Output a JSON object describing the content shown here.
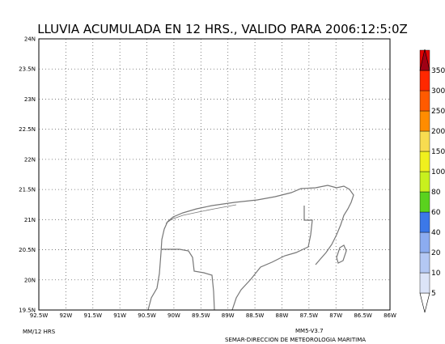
{
  "title": "LLUVIA ACUMULADA EN 12 HRS., VALIDO PARA 2006:12:5:0Z",
  "xlim": [
    -92.5,
    -86
  ],
  "ylim": [
    19.5,
    24
  ],
  "xticks": [
    {
      "value": -92.5,
      "label": "92.5W"
    },
    {
      "value": -92,
      "label": "92W"
    },
    {
      "value": -91.5,
      "label": "91.5W"
    },
    {
      "value": -91,
      "label": "91W"
    },
    {
      "value": -90.5,
      "label": "90.5W"
    },
    {
      "value": -90,
      "label": "90W"
    },
    {
      "value": -89.5,
      "label": "89.5W"
    },
    {
      "value": -89,
      "label": "89W"
    },
    {
      "value": -88.5,
      "label": "88.5W"
    },
    {
      "value": -88,
      "label": "88W"
    },
    {
      "value": -87.5,
      "label": "87.5W"
    },
    {
      "value": -87,
      "label": "87W"
    },
    {
      "value": -86.5,
      "label": "86.5W"
    },
    {
      "value": -86,
      "label": "86W"
    }
  ],
  "yticks": [
    {
      "value": 19.5,
      "label": "19.5N"
    },
    {
      "value": 20,
      "label": "20N"
    },
    {
      "value": 20.5,
      "label": "20.5N"
    },
    {
      "value": 21,
      "label": "21N"
    },
    {
      "value": 21.5,
      "label": "21.5N"
    },
    {
      "value": 22,
      "label": "22N"
    },
    {
      "value": 22.5,
      "label": "22.5N"
    },
    {
      "value": 23,
      "label": "23N"
    },
    {
      "value": 23.5,
      "label": "23.5N"
    },
    {
      "value": 24,
      "label": "24N"
    }
  ],
  "colorbar": {
    "levels": [
      5,
      10,
      20,
      40,
      60,
      80,
      100,
      150,
      200,
      250,
      300,
      350
    ],
    "colors": [
      "#ffffff",
      "#dce4f8",
      "#b4c8f4",
      "#8cacf0",
      "#3c78e8",
      "#5ad21e",
      "#c8f01e",
      "#f0f01e",
      "#f8dc50",
      "#ff8c00",
      "#ff5a00",
      "#ff2800",
      "#e00000",
      "#a00014"
    ]
  },
  "footer_left": "MM/12 HRS",
  "footer_model": "MM5-V3.7",
  "footer_credit": "SEMAR-DIRECCION DE METEOROLOGIA MARITIMA"
}
